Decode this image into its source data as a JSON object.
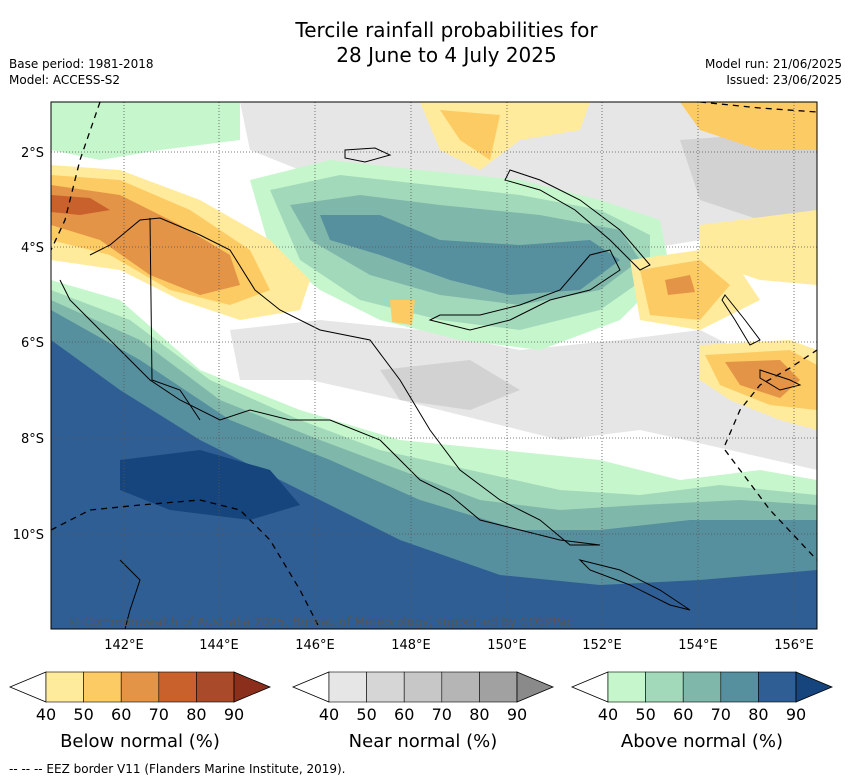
{
  "title": {
    "line1": "Tercile rainfall probabilities for",
    "line2": "28 June to 4 July 2025"
  },
  "meta": {
    "base_period": "Base period: 1981-2018",
    "model": "Model: ACCESS-S2",
    "model_run": "Model run: 21/06/2025",
    "issued": "Issued: 23/06/2025"
  },
  "map": {
    "lat_ticks": [
      "2°S",
      "4°S",
      "6°S",
      "8°S",
      "10°S"
    ],
    "lon_ticks": [
      "142°E",
      "144°E",
      "146°E",
      "148°E",
      "150°E",
      "152°E",
      "154°E",
      "156°E"
    ],
    "copyright": "© Commonwealth of Australia 2025, Bureau of Meteorology, supported by COSPPac",
    "region": "Papua New Guinea",
    "land_color": "none",
    "coast_color": "#000000"
  },
  "colorbars": [
    {
      "title": "Below normal (%)",
      "ticks": [
        "40",
        "50",
        "60",
        "70",
        "80",
        "90"
      ],
      "colors": [
        "#ffffff",
        "#ffeb9b",
        "#fdcb64",
        "#e39446",
        "#c9612d",
        "#a94a2a",
        "#8b2e1b"
      ]
    },
    {
      "title": "Near normal (%)",
      "ticks": [
        "40",
        "50",
        "60",
        "70",
        "80",
        "90"
      ],
      "colors": [
        "#ffffff",
        "#e6e6e6",
        "#d6d6d6",
        "#c7c7c7",
        "#b5b5b5",
        "#a1a1a1",
        "#8a8a8a"
      ]
    },
    {
      "title": "Above normal (%)",
      "ticks": [
        "40",
        "50",
        "60",
        "70",
        "80",
        "90"
      ],
      "colors": [
        "#ffffff",
        "#c6f7cc",
        "#a3d9bb",
        "#7fb8aa",
        "#568f9e",
        "#2f5e94",
        "#16457d"
      ]
    }
  ],
  "footnote": "--  --  -- EEZ border V11 (Flanders Marine Institute, 2019)."
}
